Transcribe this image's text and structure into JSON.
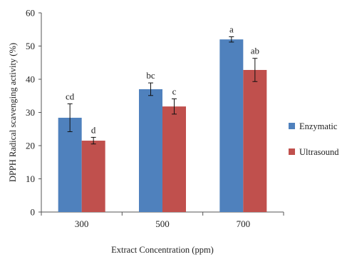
{
  "chart_data": {
    "type": "bar",
    "title": "",
    "xlabel": "Extract Concentration (ppm)",
    "ylabel": "DPPH Radical scavenging activity (%)",
    "categories": [
      "300",
      "500",
      "700"
    ],
    "ylim": [
      0,
      60
    ],
    "yticks": [
      0,
      10,
      20,
      30,
      40,
      50,
      60
    ],
    "grid": false,
    "legend_position": "right",
    "series": [
      {
        "name": "Enzymatic",
        "color": "#4F81BD",
        "values": [
          28.4,
          37.0,
          52.0
        ],
        "errors": [
          4.2,
          1.9,
          0.8
        ],
        "labels": [
          "cd",
          "bc",
          "a"
        ]
      },
      {
        "name": "Ultrasound",
        "color": "#C0504D",
        "values": [
          21.5,
          31.8,
          42.8
        ],
        "errors": [
          1.0,
          2.3,
          3.5
        ],
        "labels": [
          "d",
          "c",
          "ab"
        ]
      }
    ]
  }
}
